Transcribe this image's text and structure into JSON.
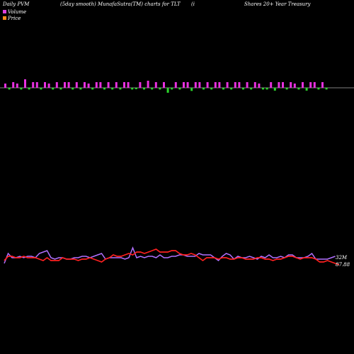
{
  "header": {
    "left": "Daily PVM",
    "middle": "(5day smooth) MunafaSutra(TM) charts for TLT",
    "right_1": "(i",
    "right_2": "Shares 20+ Year Treasury"
  },
  "legend": [
    {
      "label": "Volume",
      "color": "#e040e0"
    },
    {
      "label": "Price",
      "color": "#ff8c1a"
    }
  ],
  "colors": {
    "background": "#000000",
    "zero_line": "#aaaaaa",
    "bar_up": "#e830e0",
    "bar_down": "#2bd82b",
    "price_line": "#ff2020",
    "volume_line": "#b070ff",
    "text": "#ffffff"
  },
  "chart_data": [
    {
      "type": "bar",
      "description_series": "PVM bars",
      "x": [
        1,
        2,
        3,
        4,
        5,
        6,
        7,
        8,
        9,
        10,
        11,
        12,
        13,
        14,
        15,
        16,
        17,
        18,
        19,
        20,
        21,
        22,
        23,
        24,
        25,
        26,
        27,
        28,
        29,
        30,
        31,
        32,
        33,
        34,
        35,
        36,
        37,
        38,
        39,
        40,
        41,
        42,
        43,
        44,
        45,
        46,
        47,
        48,
        49,
        50,
        51,
        52,
        53,
        54,
        55,
        56,
        57,
        58,
        59,
        60,
        61,
        62,
        63,
        64,
        65,
        66,
        67,
        68,
        69,
        70,
        71,
        72,
        73,
        74,
        75,
        76,
        77,
        78,
        79,
        80,
        81,
        82
      ],
      "values": [
        3,
        -1.2,
        4,
        3,
        -1.2,
        6,
        -1.2,
        4,
        4,
        -1.2,
        4,
        3,
        -1.2,
        4,
        -1.2,
        4,
        4,
        -1.2,
        4,
        -1.2,
        4,
        3,
        -1.2,
        4,
        4,
        -1.2,
        4,
        -1.2,
        4,
        -1.2,
        4,
        4,
        -1.2,
        -1,
        4,
        -1.2,
        5,
        -1.2,
        4,
        -1.2,
        4,
        -3.5,
        -1.2,
        4,
        -1.2,
        4,
        4,
        -2.2,
        4,
        4,
        -1.2,
        4,
        -1.2,
        4,
        4,
        -1.2,
        4,
        -1.2,
        4,
        4,
        -1.2,
        4,
        -1.2,
        4,
        3,
        -1.2,
        -1.2,
        4,
        -2,
        4,
        4,
        -1.2,
        4,
        3,
        -1.2,
        4,
        -2,
        4,
        4,
        -1.2,
        4,
        -1.2
      ]
    },
    {
      "type": "line",
      "series": [
        {
          "name": "Volume",
          "label": "32M",
          "values": [
            6,
            13,
            10,
            10,
            11,
            10,
            11,
            11,
            10,
            13,
            14,
            15,
            10,
            9,
            10,
            10,
            9,
            9,
            10,
            10,
            11,
            11,
            10,
            11,
            12,
            13,
            9,
            10,
            10,
            10,
            10,
            9,
            10,
            17,
            10,
            11,
            10,
            11,
            11,
            10,
            12,
            10,
            10,
            11,
            11,
            12,
            12,
            11,
            11,
            11,
            13,
            12,
            12,
            12,
            10,
            8,
            11,
            13,
            12,
            9,
            11,
            10,
            10,
            11,
            10,
            9,
            11,
            10,
            12,
            10,
            10,
            11,
            10,
            12,
            12,
            10,
            10,
            10,
            11,
            13,
            9,
            9,
            9,
            9,
            10,
            11
          ]
        },
        {
          "name": "Price",
          "label": "87.88",
          "values": [
            8,
            11,
            11,
            10,
            10,
            11,
            10,
            10,
            10,
            9,
            8,
            10,
            8,
            8,
            8,
            10,
            9,
            9,
            9,
            8,
            9,
            9,
            10,
            9,
            8,
            7,
            9,
            10,
            12,
            11,
            11,
            12,
            13,
            12,
            14,
            14,
            13,
            14,
            15,
            16,
            14,
            14,
            14,
            15,
            15,
            13,
            12,
            12,
            13,
            12,
            10,
            8,
            10,
            10,
            10,
            9,
            10,
            10,
            9,
            9,
            10,
            10,
            9,
            9,
            9,
            10,
            10,
            9,
            9,
            8,
            9,
            9,
            10,
            11,
            11,
            10,
            9,
            10,
            10,
            10,
            9,
            7,
            7,
            8,
            7,
            6,
            5
          ]
        }
      ]
    }
  ]
}
